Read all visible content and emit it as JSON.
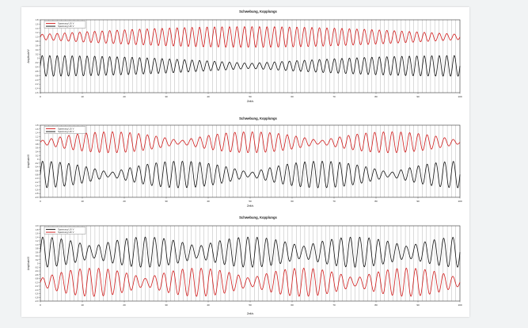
{
  "chart_data": [
    {
      "type": "line",
      "title": "Schwebung, Kopplungs",
      "xlabel": "Zeit/s",
      "ylabel": "Amplitude/V",
      "xlim": [
        0,
        100
      ],
      "ylim": [
        -1.6,
        1.8
      ],
      "xticks": [
        "0",
        "10",
        "20",
        "30",
        "40",
        "50",
        "60",
        "70",
        "80",
        "90",
        "100"
      ],
      "yticks": [
        "1.8",
        "1.6",
        "1.4",
        "1.2",
        "1.0",
        "0.8",
        "0.6",
        "0.4",
        "0.2",
        "0",
        "-0.2",
        "-0.4",
        "-0.6",
        "-0.8",
        "-1.0",
        "-1.2",
        "-1.4",
        "-1.6"
      ],
      "grid": "vertical",
      "legend": "top-left",
      "series": [
        {
          "name": "Spannung U1/ V",
          "color": "#d11a1a",
          "offset": 1.0,
          "carrier_periods": 56,
          "envelope_periods": 1.0,
          "envelope_phase": 0.5,
          "amp_min": 0.12,
          "amp_max": 0.48
        },
        {
          "name": "Spannung U2/ V",
          "color": "#111111",
          "offset": -0.35,
          "carrier_periods": 56,
          "envelope_periods": 1.0,
          "envelope_phase": 0.0,
          "amp_min": 0.12,
          "amp_max": 0.48
        }
      ]
    },
    {
      "type": "line",
      "title": "Schwebung, Kopplungs",
      "xlabel": "Zeit/s",
      "ylabel": "Amplitude/V",
      "xlim": [
        0,
        100
      ],
      "ylim": [
        -2.0,
        1.8
      ],
      "xticks": [
        "0",
        "10",
        "20",
        "30",
        "40",
        "50",
        "60",
        "70",
        "80",
        "90",
        "100"
      ],
      "yticks": [
        "1.8",
        "1.6",
        "1.4",
        "1.2",
        "1.0",
        "0.8",
        "0.6",
        "0.4",
        "0.2",
        "0",
        "-0.2",
        "-0.4",
        "-0.6",
        "-0.8",
        "-1.0",
        "-1.2",
        "-1.4",
        "-1.6",
        "-1.8",
        "-2.0"
      ],
      "grid": "vertical",
      "legend": "top-left",
      "series": [
        {
          "name": "Spannung U1/ V",
          "color": "#d11a1a",
          "offset": 0.9,
          "carrier_periods": 48,
          "envelope_periods": 3.0,
          "envelope_phase": 0.5,
          "amp_min": 0.08,
          "amp_max": 0.55
        },
        {
          "name": "Spannung U2/ V",
          "color": "#111111",
          "offset": -0.8,
          "carrier_periods": 48,
          "envelope_periods": 3.0,
          "envelope_phase": 0.0,
          "amp_min": 0.1,
          "amp_max": 0.7
        }
      ]
    },
    {
      "type": "line",
      "title": "Schwebung, Kopplungs",
      "xlabel": "Zeit/s",
      "ylabel": "Amplitude/V",
      "xlim": [
        0,
        100
      ],
      "ylim": [
        -2.0,
        2.0
      ],
      "xticks": [
        "0",
        "10",
        "20",
        "30",
        "40",
        "50",
        "60",
        "70",
        "80",
        "90",
        "100"
      ],
      "yticks": [
        "2.0",
        "1.8",
        "1.6",
        "1.4",
        "1.2",
        "1.0",
        "0.8",
        "0.6",
        "0.4",
        "0.2",
        "0",
        "-0.2",
        "-0.4",
        "-0.6",
        "-0.8",
        "-1.0",
        "-1.2",
        "-1.4",
        "-1.6",
        "-1.8",
        "-2.0"
      ],
      "grid": "vertical",
      "legend": "top-left",
      "series": [
        {
          "name": "Spannung U1/ V",
          "color": "#111111",
          "offset": 0.6,
          "carrier_periods": 45,
          "envelope_periods": 4.0,
          "envelope_phase": 0.0,
          "amp_min": 0.3,
          "amp_max": 0.8
        },
        {
          "name": "Spannung U2/ V",
          "color": "#d11a1a",
          "offset": -1.0,
          "carrier_periods": 45,
          "envelope_periods": 4.0,
          "envelope_phase": 0.5,
          "amp_min": 0.2,
          "amp_max": 0.75
        }
      ]
    }
  ]
}
